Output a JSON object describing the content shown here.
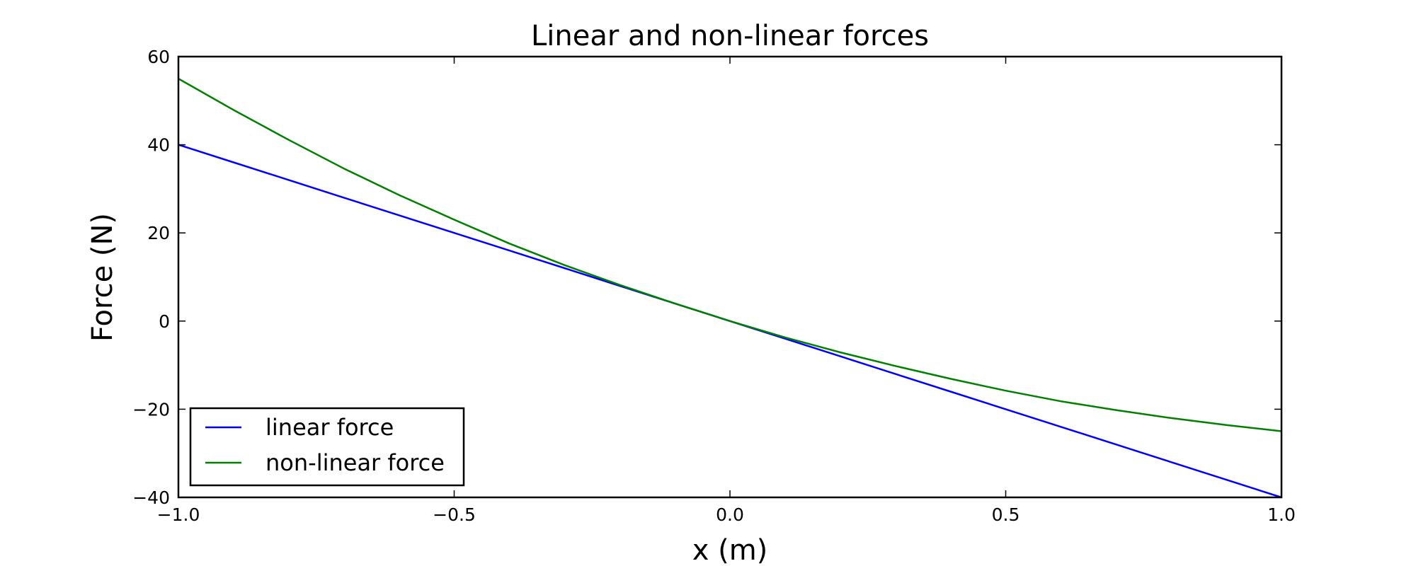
{
  "chart_data": {
    "type": "line",
    "title": "Linear and non-linear forces",
    "xlabel": "x (m)",
    "ylabel": "Force (N)",
    "xlim": [
      -1.0,
      1.0
    ],
    "ylim": [
      -40,
      60
    ],
    "x_ticks": [
      -1.0,
      -0.5,
      0.0,
      0.5,
      1.0
    ],
    "x_tick_labels": [
      "−1.0",
      "−0.5",
      "0.0",
      "0.5",
      "1.0"
    ],
    "y_ticks": [
      -40,
      -20,
      0,
      20,
      40,
      60
    ],
    "y_tick_labels": [
      "−40",
      "−20",
      "0",
      "20",
      "40",
      "60"
    ],
    "grid": false,
    "legend_position": "lower-left",
    "x": [
      -1.0,
      -0.9,
      -0.8,
      -0.7,
      -0.6,
      -0.5,
      -0.4,
      -0.3,
      -0.2,
      -0.1,
      0.0,
      0.1,
      0.2,
      0.3,
      0.4,
      0.5,
      0.6,
      0.7,
      0.8,
      0.9,
      1.0
    ],
    "series": [
      {
        "name": "linear force",
        "color": "#0000ff",
        "values": [
          40,
          36,
          32,
          28,
          24,
          20,
          16,
          12,
          8,
          4,
          0,
          -4,
          -8,
          -12,
          -16,
          -20,
          -24,
          -28,
          -32,
          -36,
          -40
        ]
      },
      {
        "name": "non-linear force",
        "color": "#008000",
        "values": [
          55,
          47.9,
          41.1,
          34.6,
          28.6,
          23.0,
          17.6,
          12.7,
          8.2,
          4.0,
          0,
          -3.7,
          -7.1,
          -10.2,
          -13.1,
          -15.8,
          -18.2,
          -20.2,
          -22.0,
          -23.6,
          -25
        ]
      }
    ]
  }
}
